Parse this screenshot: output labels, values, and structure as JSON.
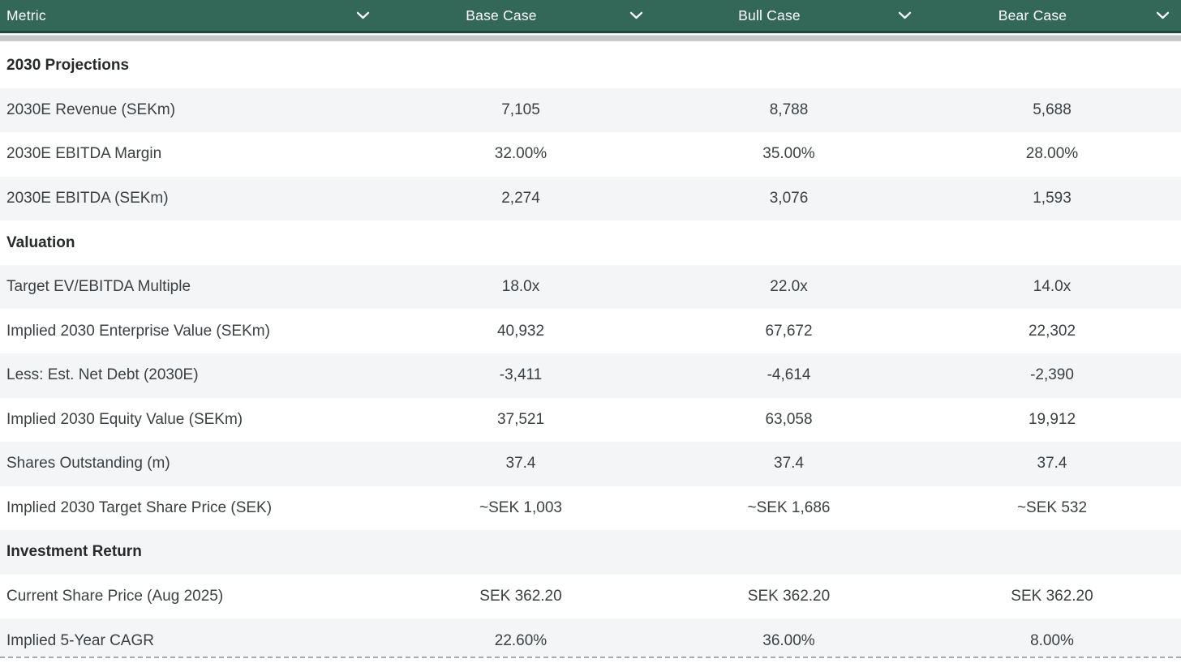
{
  "table": {
    "columns": [
      {
        "key": "metric",
        "label": "Metric"
      },
      {
        "key": "base",
        "label": "Base Case"
      },
      {
        "key": "bull",
        "label": "Bull Case"
      },
      {
        "key": "bear",
        "label": "Bear Case"
      }
    ],
    "rows": [
      {
        "type": "section",
        "label": "2030 Projections"
      },
      {
        "type": "data",
        "label": "2030E Revenue (SEKm)",
        "base": "7,105",
        "bull": "8,788",
        "bear": "5,688"
      },
      {
        "type": "data",
        "label": "2030E EBITDA Margin",
        "base": "32.00%",
        "bull": "35.00%",
        "bear": "28.00%"
      },
      {
        "type": "data",
        "label": "2030E EBITDA (SEKm)",
        "base": "2,274",
        "bull": "3,076",
        "bear": "1,593"
      },
      {
        "type": "section",
        "label": "Valuation"
      },
      {
        "type": "data",
        "label": "Target EV/EBITDA Multiple",
        "base": "18.0x",
        "bull": "22.0x",
        "bear": "14.0x"
      },
      {
        "type": "data",
        "label": "Implied 2030 Enterprise Value (SEKm)",
        "base": "40,932",
        "bull": "67,672",
        "bear": "22,302"
      },
      {
        "type": "data",
        "label": "Less: Est. Net Debt (2030E)",
        "base": "-3,411",
        "bull": "-4,614",
        "bear": "-2,390"
      },
      {
        "type": "data",
        "label": "Implied 2030 Equity Value (SEKm)",
        "base": "37,521",
        "bull": "63,058",
        "bear": "19,912"
      },
      {
        "type": "data",
        "label": "Shares Outstanding (m)",
        "base": "37.4",
        "bull": "37.4",
        "bear": "37.4"
      },
      {
        "type": "data",
        "label": "Implied 2030 Target Share Price (SEK)",
        "base": "~SEK 1,003",
        "bull": "~SEK 1,686",
        "bear": "~SEK 532"
      },
      {
        "type": "section",
        "label": "Investment Return"
      },
      {
        "type": "data",
        "label": "Current Share Price (Aug 2025)",
        "base": "SEK 362.20",
        "bull": "SEK 362.20",
        "bear": "SEK 362.20"
      },
      {
        "type": "data",
        "label": "Implied 5-Year CAGR",
        "base": "22.60%",
        "bull": "36.00%",
        "bear": "8.00%"
      }
    ]
  },
  "icons": {
    "header_sort": "chevron-down-icon"
  },
  "colors": {
    "header_bg": "#336757",
    "header_border": "#1E4939",
    "header_text": "#FFFFFF",
    "row_alt_bg": "#F4F5F7",
    "row_bg": "#FFFFFF",
    "text": "#3C4043",
    "section_text": "#27292B",
    "scrollbar_thumb": "#C6C8C7",
    "dashed_border": "#ABABAB"
  }
}
